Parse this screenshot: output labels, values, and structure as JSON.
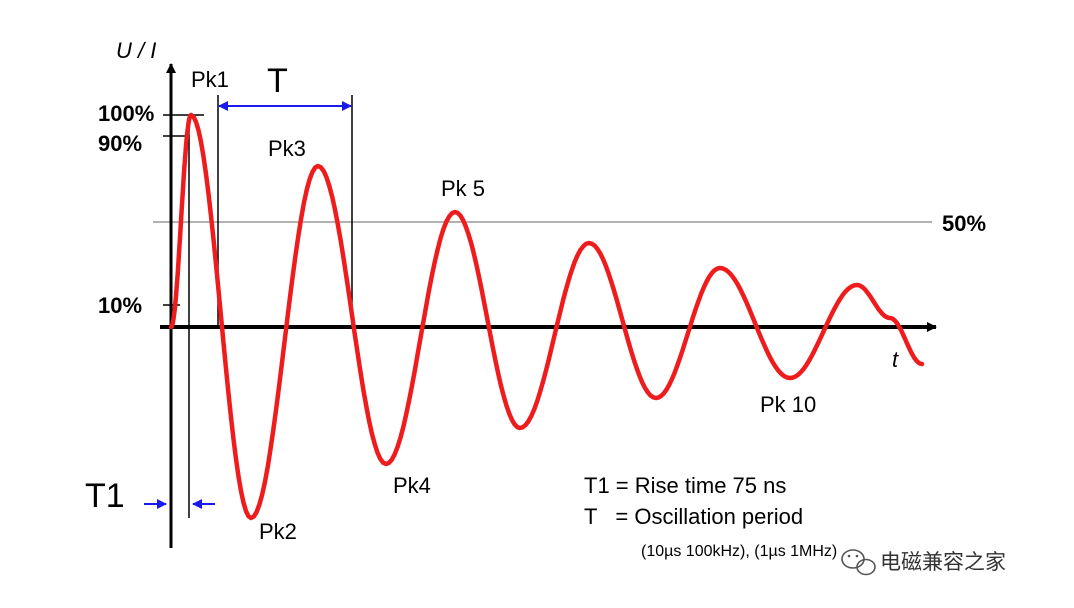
{
  "axes": {
    "y_label": "U / I",
    "x_label": "t"
  },
  "levels": {
    "p100": "100%",
    "p90": "90%",
    "p50": "50%",
    "p10": "10%"
  },
  "peaks": {
    "pk1": "Pk1",
    "pk2": "Pk2",
    "pk3": "Pk3",
    "pk4": "Pk4",
    "pk5": "Pk 5",
    "pk10": "Pk 10"
  },
  "markers": {
    "period": "T",
    "rise": "T1"
  },
  "legend": {
    "line1": "T1 = Rise time 75 ns",
    "line2": "T   = Oscillation period",
    "line3": "(10µs 100kHz), (1µs 1MHz)"
  },
  "watermark": "电磁兼容之家",
  "colors": {
    "waveform": "#ee1c1c",
    "arrows": "#1a1aee",
    "axis": "#000000",
    "reference_line": "#999999"
  }
}
